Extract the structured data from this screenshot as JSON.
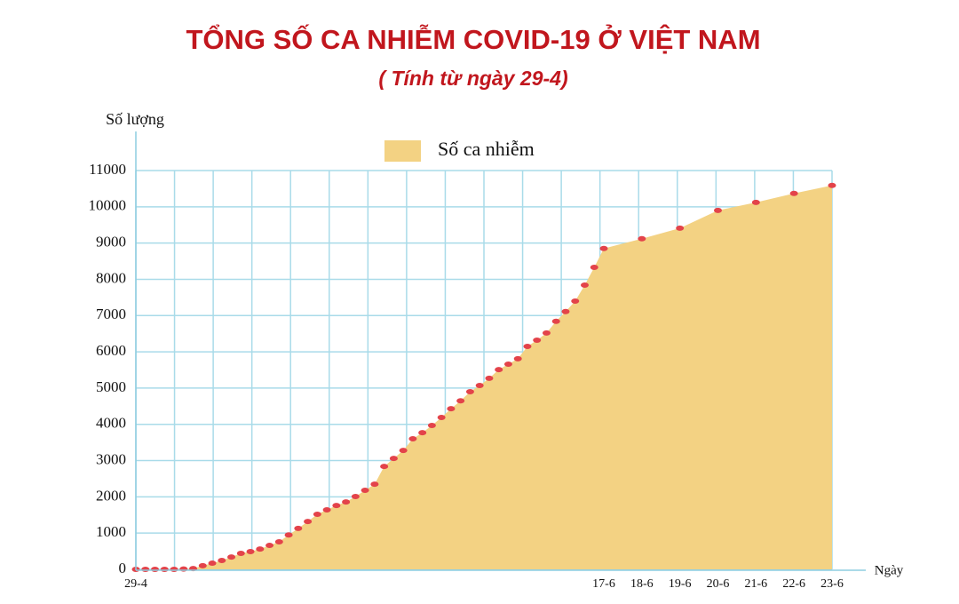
{
  "chart_data": {
    "type": "area",
    "title": "TỔNG SỐ CA NHIỄM COVID-19 Ở VIỆT NAM",
    "subtitle": "( Tính từ ngày 29-4)",
    "y_label": "Số lượng",
    "x_label": "Ngày",
    "categories": [
      "29-4",
      null,
      null,
      null,
      null,
      null,
      null,
      null,
      null,
      null,
      null,
      null,
      null,
      null,
      null,
      null,
      null,
      null,
      null,
      null,
      null,
      null,
      null,
      null,
      null,
      null,
      null,
      null,
      null,
      null,
      null,
      null,
      null,
      null,
      null,
      null,
      null,
      null,
      null,
      null,
      null,
      null,
      null,
      null,
      null,
      null,
      null,
      null,
      null,
      "17-6",
      "18-6",
      "19-6",
      "20-6",
      "21-6",
      "22-6",
      "23-6"
    ],
    "series": [
      {
        "name": "Số ca nhiễm",
        "color": "#f3d283",
        "point_color": "#e3434a",
        "values": [
          0,
          0,
          0,
          0,
          0,
          10,
          20,
          100,
          170,
          245,
          340,
          440,
          490,
          560,
          660,
          760,
          950,
          1130,
          1320,
          1520,
          1640,
          1760,
          1860,
          2010,
          2180,
          2350,
          2840,
          3060,
          3280,
          3600,
          3770,
          3970,
          4190,
          4430,
          4650,
          4900,
          5070,
          5270,
          5510,
          5660,
          5810,
          6150,
          6320,
          6520,
          6840,
          7110,
          7400,
          7840,
          8330,
          8850,
          9120,
          9410,
          9900,
          10120,
          10370,
          10590
        ]
      }
    ],
    "ylim": [
      0,
      11000
    ],
    "yticks": [
      0,
      1000,
      2000,
      3000,
      4000,
      5000,
      6000,
      7000,
      8000,
      9000,
      10000,
      11000
    ],
    "grid": true
  }
}
